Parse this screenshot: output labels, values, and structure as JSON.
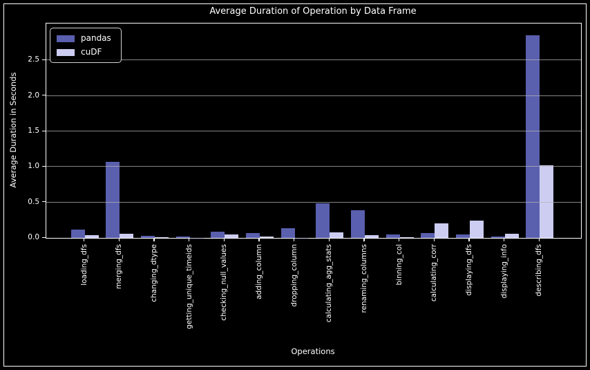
{
  "title": "Average Duration of Operation by Data Frame",
  "chart_data": {
    "type": "bar",
    "title": "Average Duration of Operation by Data Frame",
    "xlabel": "Operations",
    "ylabel": "Average Duration in Seconds",
    "categories": [
      "loading_dfs",
      "merging_dfs",
      "changing_dtype",
      "getting_unique_timeids",
      "checking_null_values",
      "adding_column",
      "dropping_column",
      "calculating_agg_stats",
      "renaming_columns",
      "binning_col",
      "calculating_corr",
      "displaying_dfs",
      "displaying_info",
      "describing_dfs"
    ],
    "series": [
      {
        "name": "pandas",
        "color": "#5a5fae",
        "values": [
          0.12,
          1.07,
          0.03,
          0.015,
          0.09,
          0.07,
          0.14,
          0.49,
          0.39,
          0.05,
          0.07,
          0.05,
          0.02,
          2.85
        ]
      },
      {
        "name": "cuDF",
        "color": "#cdcdf2",
        "values": [
          0.04,
          0.06,
          0.01,
          0.005,
          0.045,
          0.02,
          0.005,
          0.08,
          0.04,
          0.01,
          0.2,
          0.24,
          0.055,
          1.02
        ]
      }
    ],
    "ylim": [
      0,
      3.02
    ],
    "yticks": [
      0.0,
      0.5,
      1.0,
      1.5,
      2.0,
      2.5
    ],
    "grid": true,
    "grid_axis": "y",
    "legend_position": "upper left",
    "colors": {
      "background": "#000000",
      "text": "#ffffff",
      "spine": "#ffffff",
      "gridline": "#b3b3b3"
    }
  }
}
